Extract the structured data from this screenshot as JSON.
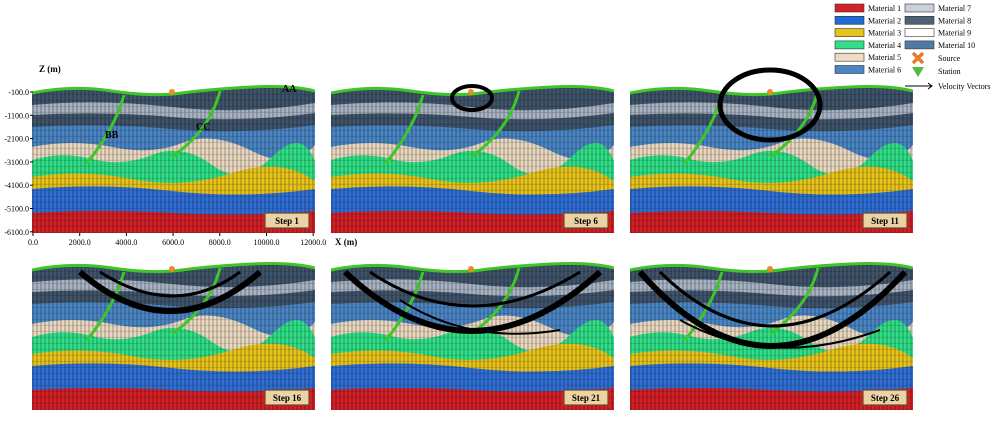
{
  "axes": {
    "z_label": "Z (m)",
    "x_label": "X (m)",
    "z_ticks": [
      "-100.0",
      "-1100.0",
      "-2100.0",
      "-3100.0",
      "-4100.0",
      "-5100.0",
      "-6100.0"
    ],
    "x_ticks": [
      "0.0",
      "2000.0",
      "4000.0",
      "6000.0",
      "8000.0",
      "10000.0",
      "12000.0"
    ]
  },
  "annotations": [
    "AA",
    "BB",
    "CC"
  ],
  "panels": [
    "Step 1",
    "Step 6",
    "Step 11",
    "Step 16",
    "Step 21",
    "Step 26"
  ],
  "legend": {
    "materials": [
      "Material 1",
      "Material 2",
      "Material 3",
      "Material 4",
      "Material 5",
      "Material 6",
      "Material 7",
      "Material 8",
      "Material 9",
      "Material 10"
    ],
    "source": "Source",
    "station": "Station",
    "vectors": "Velocity Vectors"
  }
}
